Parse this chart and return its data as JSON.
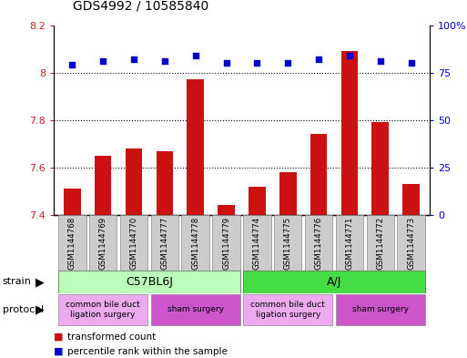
{
  "title": "GDS4992 / 10585840",
  "samples": [
    "GSM1144768",
    "GSM1144769",
    "GSM1144770",
    "GSM1144777",
    "GSM1144778",
    "GSM1144779",
    "GSM1144774",
    "GSM1144775",
    "GSM1144776",
    "GSM1144771",
    "GSM1144772",
    "GSM1144773"
  ],
  "transformed_counts": [
    7.51,
    7.65,
    7.68,
    7.67,
    7.97,
    7.44,
    7.52,
    7.58,
    7.74,
    8.09,
    7.79,
    7.53
  ],
  "percentile_ranks": [
    79,
    81,
    82,
    81,
    84,
    80,
    80,
    80,
    82,
    84,
    81,
    80
  ],
  "bar_color": "#cc1111",
  "dot_color": "#0000cc",
  "ylim_left": [
    7.4,
    8.2
  ],
  "ylim_right": [
    0,
    100
  ],
  "yticks_left": [
    7.4,
    7.6,
    7.8,
    8.0,
    8.2
  ],
  "yticks_right": [
    0,
    25,
    50,
    75,
    100
  ],
  "ytick_labels_left": [
    "7.4",
    "7.6",
    "7.8",
    "8",
    "8.2"
  ],
  "ytick_labels_right": [
    "0",
    "25",
    "50",
    "75",
    "100%"
  ],
  "grid_lines": [
    7.6,
    7.8,
    8.0
  ],
  "bar_bottom": 7.4,
  "strain_labels": [
    {
      "label": "C57BL6J",
      "start": 0,
      "end": 5,
      "color": "#bbffbb"
    },
    {
      "label": "A/J",
      "start": 6,
      "end": 11,
      "color": "#44dd44"
    }
  ],
  "protocol_labels": [
    {
      "label": "common bile duct\nligation surgery",
      "start": 0,
      "end": 2,
      "color": "#eeaaee"
    },
    {
      "label": "sham surgery",
      "start": 3,
      "end": 5,
      "color": "#cc55cc"
    },
    {
      "label": "common bile duct\nligation surgery",
      "start": 6,
      "end": 8,
      "color": "#eeaaee"
    },
    {
      "label": "sham surgery",
      "start": 9,
      "end": 11,
      "color": "#cc55cc"
    }
  ],
  "legend_items": [
    {
      "label": "transformed count",
      "color": "#cc1111"
    },
    {
      "label": "percentile rank within the sample",
      "color": "#0000cc"
    }
  ],
  "tick_color_left": "#cc2222",
  "tick_color_right": "#0000cc",
  "bar_width": 0.55,
  "dot_size": 25,
  "sample_box_color": "#cccccc",
  "xlim": [
    -0.6,
    11.6
  ]
}
